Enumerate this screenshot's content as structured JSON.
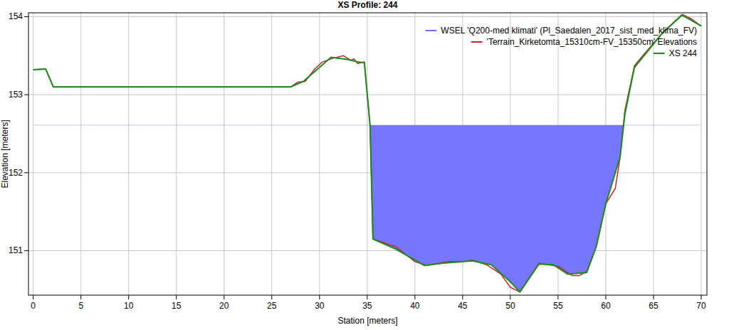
{
  "chart_data": {
    "type": "line",
    "title": "XS Profile: 244",
    "x_label": "Station [meters]",
    "y_label": "Elevation [meters]",
    "xlim": [
      -0.5,
      70.6
    ],
    "ylim": [
      150.43,
      154.05
    ],
    "xticks": [
      0,
      5,
      10,
      15,
      20,
      25,
      30,
      35,
      40,
      45,
      50,
      55,
      60,
      65,
      70
    ],
    "yticks": [
      151,
      152,
      153,
      154
    ],
    "grid": true,
    "legend": "upper right",
    "series": [
      {
        "name": "WSEL 'Q200-med klimati' (Pl_Saedalen_2017_sist_med_klima_FV)",
        "type": "area",
        "color": "#6f6fff",
        "x": [
          0,
          70
        ],
        "values": [
          152.61,
          152.61
        ]
      },
      {
        "name": "'Terrain_Kirketomta_15310cm-FV_15350cm' Elevations",
        "type": "line",
        "color": "#c0282d",
        "x": [
          0,
          1.3,
          2.1,
          27,
          27.7,
          28.5,
          29.5,
          30.3,
          31.5,
          32.5,
          33.3,
          33.6,
          34,
          34.7,
          35.3,
          35.6,
          38,
          40,
          41.2,
          43.5,
          45,
          46,
          47.5,
          49,
          50,
          51,
          53,
          55,
          56.5,
          57.2,
          58,
          59,
          60,
          61,
          61.5,
          62,
          63,
          64,
          66,
          68,
          69,
          70
        ],
        "values": [
          153.32,
          153.33,
          153.1,
          153.1,
          153.16,
          153.17,
          153.33,
          153.42,
          153.47,
          153.5,
          153.44,
          153.46,
          153.4,
          153.42,
          152.6,
          151.15,
          151.05,
          150.86,
          150.81,
          150.86,
          150.86,
          150.88,
          150.82,
          150.7,
          150.53,
          150.47,
          150.84,
          150.8,
          150.68,
          150.68,
          150.73,
          151.05,
          151.6,
          151.8,
          152.2,
          152.8,
          153.37,
          153.52,
          153.8,
          154.03,
          153.97,
          153.88
        ]
      },
      {
        "name": "XS 244",
        "type": "line",
        "color": "#1f8a1f",
        "x": [
          0,
          1.3,
          2.1,
          27,
          28.3,
          30,
          31.2,
          33,
          34,
          34.7,
          35.3,
          35.6,
          38,
          41,
          43,
          46,
          48,
          50,
          51,
          53,
          54.5,
          56,
          58,
          59,
          60,
          61,
          61.5,
          62,
          63,
          64,
          66,
          68,
          69,
          70
        ],
        "values": [
          153.32,
          153.33,
          153.1,
          153.1,
          153.17,
          153.35,
          153.48,
          153.45,
          153.42,
          153.41,
          152.6,
          151.15,
          151.02,
          150.81,
          150.84,
          150.87,
          150.82,
          150.6,
          150.47,
          150.83,
          150.82,
          150.7,
          150.72,
          151.05,
          151.6,
          152.0,
          152.2,
          152.75,
          153.35,
          153.5,
          153.8,
          154.02,
          153.95,
          153.88
        ]
      }
    ]
  }
}
